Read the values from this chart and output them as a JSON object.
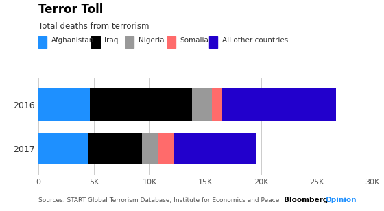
{
  "title": "Terror Toll",
  "subtitle": "Total deaths from terrorism",
  "years": [
    "2016",
    "2017"
  ],
  "categories": [
    "Afghanistan",
    "Iraq",
    "Nigeria",
    "Somalia",
    "All other countries"
  ],
  "values": {
    "2016": [
      4600,
      9200,
      1800,
      900,
      10200
    ],
    "2017": [
      4500,
      4800,
      1500,
      1400,
      7300
    ]
  },
  "colors": [
    "#1E90FF",
    "#000000",
    "#999999",
    "#FF6B6B",
    "#2200CC"
  ],
  "xlim": [
    0,
    30000
  ],
  "xticks": [
    0,
    5000,
    10000,
    15000,
    20000,
    25000,
    30000
  ],
  "xtick_labels": [
    "0",
    "5K",
    "10K",
    "15K",
    "20K",
    "25K",
    "30K"
  ],
  "source": "Sources: START Global Terrorism Database; Institute for Economics and Peace",
  "brand_black": "Bloomberg",
  "brand_blue": "Opinion",
  "background_color": "#FFFFFF",
  "bar_height": 0.72
}
